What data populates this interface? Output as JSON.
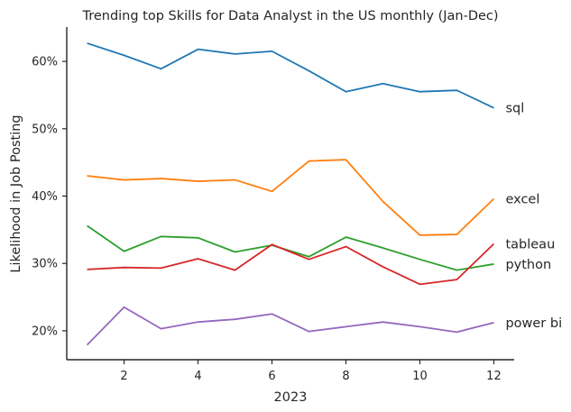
{
  "chart_data": {
    "type": "line",
    "title": "Trending top Skills for Data Analyst in the US monthly (Jan-Dec)",
    "xlabel": "2023",
    "ylabel": "Likelihood in Job Posting",
    "x": [
      1,
      2,
      3,
      4,
      5,
      6,
      7,
      8,
      9,
      10,
      11,
      12
    ],
    "xticks": [
      2,
      4,
      6,
      8,
      10,
      12
    ],
    "xlim": [
      0.45,
      12.55
    ],
    "yticks": [
      20,
      30,
      40,
      50,
      60
    ],
    "ytick_labels": [
      "20%",
      "30%",
      "40%",
      "50%",
      "60%"
    ],
    "ylim": [
      15.7,
      65.1
    ],
    "grid": false,
    "legend": "none; series names printed at right end of each line",
    "series": [
      {
        "name": "sql",
        "color": "#1f77b4",
        "values": [
          62.7,
          60.9,
          58.9,
          61.8,
          61.1,
          61.5,
          58.6,
          55.5,
          56.7,
          55.5,
          55.7,
          53.1
        ]
      },
      {
        "name": "excel",
        "color": "#ff7f0e",
        "values": [
          43.0,
          42.4,
          42.6,
          42.2,
          42.4,
          40.7,
          45.2,
          45.4,
          39.2,
          34.2,
          34.3,
          39.6
        ]
      },
      {
        "name": "python",
        "color": "#2ca02c",
        "values": [
          35.6,
          31.8,
          34.0,
          33.8,
          31.7,
          32.7,
          31.0,
          33.9,
          32.3,
          30.6,
          29.0,
          29.9
        ]
      },
      {
        "name": "tableau",
        "color": "#d62728",
        "values": [
          29.1,
          29.4,
          29.3,
          30.7,
          29.0,
          32.8,
          30.6,
          32.5,
          29.5,
          26.9,
          27.6,
          32.9
        ]
      },
      {
        "name": "power bi",
        "color": "#9467bd",
        "values": [
          17.9,
          23.5,
          20.3,
          21.3,
          21.7,
          22.5,
          19.9,
          20.6,
          21.3,
          20.6,
          19.8,
          21.2
        ]
      }
    ]
  }
}
